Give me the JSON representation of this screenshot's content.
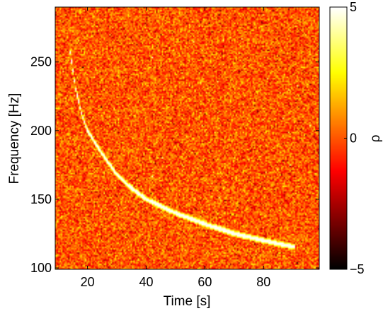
{
  "chart_data": {
    "type": "heatmap",
    "title": "",
    "xlabel": "Time [s]",
    "ylabel": "Frequency [Hz]",
    "xlim": [
      9,
      99
    ],
    "ylim": [
      99,
      290
    ],
    "xticks": [
      20,
      40,
      60,
      80
    ],
    "yticks": [
      100,
      150,
      200,
      250
    ],
    "colorbar": {
      "label": "ρ",
      "min": -5,
      "max": 5,
      "ticks": [
        -5,
        0,
        5
      ],
      "colormap": "hot"
    },
    "background": "random noise, ρ mostly between -2 and 2",
    "signal_track": {
      "description": "bright chirp decreasing in frequency over time",
      "value": 5,
      "points": [
        {
          "x": 14,
          "y": 258
        },
        {
          "x": 16,
          "y": 230
        },
        {
          "x": 18,
          "y": 212
        },
        {
          "x": 20,
          "y": 200
        },
        {
          "x": 25,
          "y": 183
        },
        {
          "x": 30,
          "y": 168
        },
        {
          "x": 35,
          "y": 158
        },
        {
          "x": 40,
          "y": 150
        },
        {
          "x": 50,
          "y": 140
        },
        {
          "x": 60,
          "y": 132
        },
        {
          "x": 70,
          "y": 125
        },
        {
          "x": 80,
          "y": 120
        },
        {
          "x": 91,
          "y": 115
        }
      ]
    },
    "grid": false
  }
}
